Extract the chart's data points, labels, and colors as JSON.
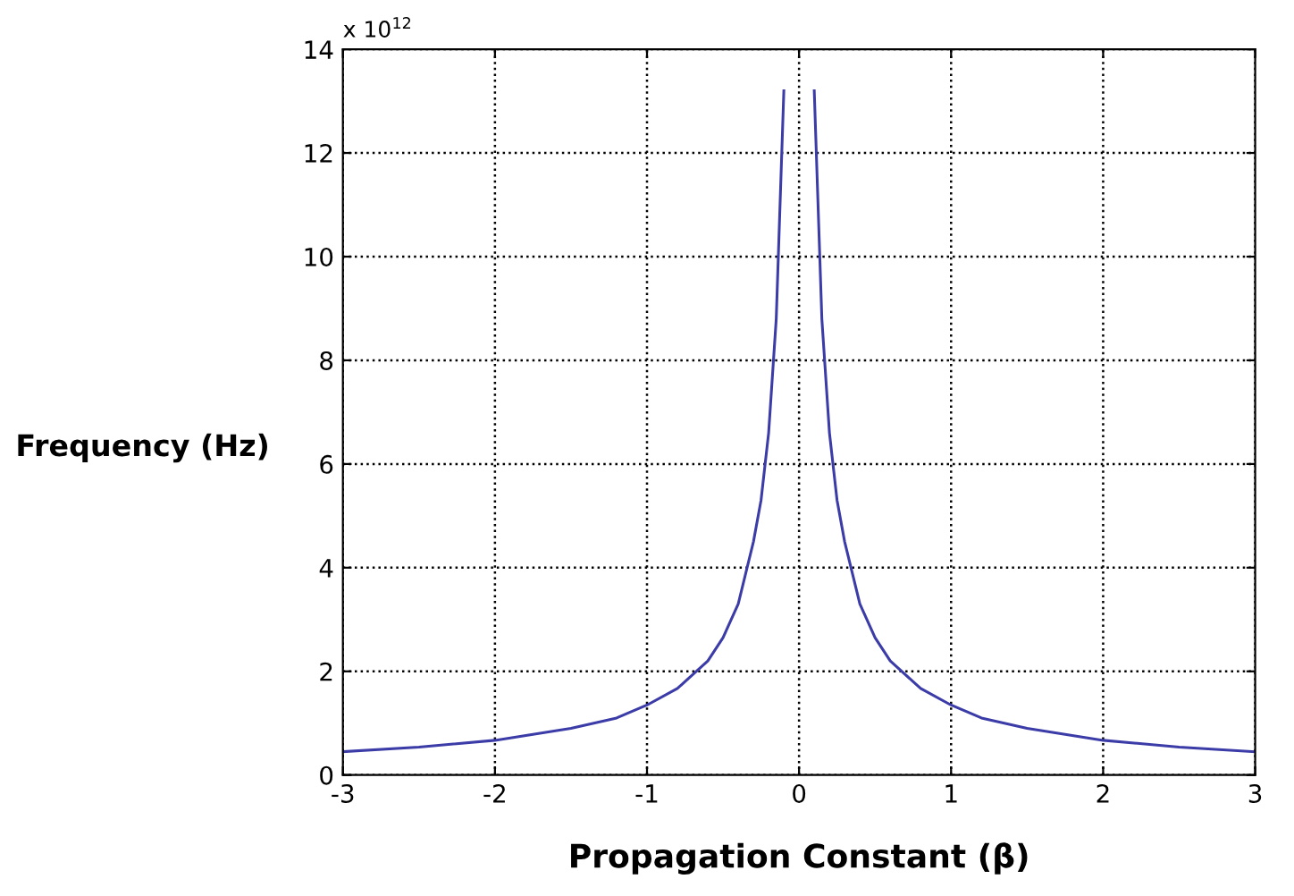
{
  "chart_data": {
    "type": "line",
    "xlabel": "Propagation Constant (β)",
    "ylabel": "Frequency (Hz)",
    "annotations": [
      "x 10$^{12}$"
    ],
    "series": [
      {
        "color": "#3c3ca8",
        "x": [
          -3,
          -2.5,
          -2,
          -1.5,
          -1.2,
          -1,
          -0.8,
          -0.6,
          -0.5,
          -0.4,
          -0.35,
          -0.3,
          -0.25,
          -0.2,
          -0.15,
          -0.1,
          0,
          0.1,
          0.15,
          0.2,
          0.25,
          0.3,
          0.35,
          0.4,
          0.5,
          0.6,
          0.8,
          1,
          1.2,
          1.5,
          2,
          2.5,
          3
        ],
        "values": [
          0.45,
          0.54,
          0.67,
          0.9,
          1.1,
          1.35,
          1.67,
          2.2,
          2.65,
          3.3,
          3.9,
          4.5,
          5.3,
          6.6,
          8.8,
          13.2,
          null,
          13.2,
          8.8,
          6.6,
          5.3,
          4.5,
          3.9,
          3.3,
          2.65,
          2.2,
          1.67,
          1.35,
          1.1,
          0.9,
          0.67,
          0.54,
          0.45
        ]
      }
    ],
    "xlim": [
      -3,
      3
    ],
    "ylim": [
      0,
      14
    ],
    "xticks": [
      -3,
      -2,
      -1,
      0,
      1,
      2,
      3
    ],
    "yticks": [
      0,
      2,
      4,
      6,
      8,
      10,
      12,
      14
    ],
    "grid": true,
    "line_style": "solid",
    "marker": "none"
  }
}
